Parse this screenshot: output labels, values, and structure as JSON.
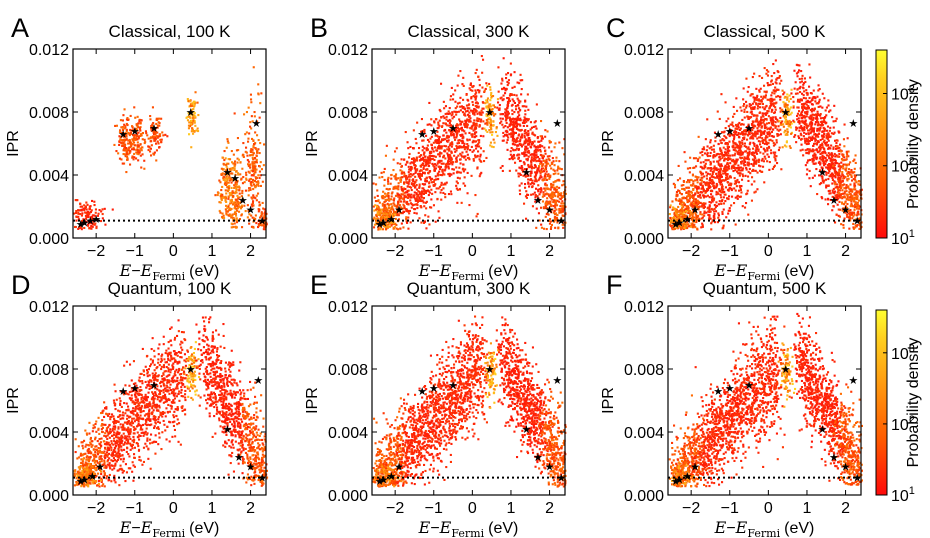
{
  "figure": {
    "colorbar_label": "Probability density",
    "colorbar_ticks": [
      {
        "base": "10",
        "exp": "3"
      },
      {
        "base": "10",
        "exp": "2"
      },
      {
        "base": "10",
        "exp": "1"
      }
    ],
    "colorbar_range": [
      10,
      4000
    ],
    "colorbar_scale": "log",
    "colormap": [
      "#ff0a0a",
      "#ff5a00",
      "#ff9a10",
      "#ffd020",
      "#ffff30"
    ],
    "star_color": "#000000",
    "ipr_floor": 0.0011
  },
  "chart_data": [
    {
      "panel": "A",
      "title": "Classical, 100 K",
      "type": "heatmap",
      "xlabel_main": "E",
      "xlabel_sub": "Fermi",
      "xlabel_unit": "(eV)",
      "ylabel": "IPR",
      "xlim": [
        -2.6,
        2.4
      ],
      "ylim": [
        0,
        0.012
      ],
      "xticks": [
        -2,
        -1,
        0,
        1,
        2
      ],
      "xtick_labels": [
        "−2",
        "−1",
        "0",
        "1",
        "2"
      ],
      "yticks": [
        0,
        0.004,
        0.008,
        0.012
      ],
      "ytick_labels": [
        "0.000",
        "0.004",
        "0.008",
        "0.012"
      ],
      "reference_line_ipr": 0.0011,
      "stars": [
        [
          -2.4,
          0.0009
        ],
        [
          -2.3,
          0.001
        ],
        [
          -2.15,
          0.0011
        ],
        [
          -2.0,
          0.0012
        ],
        [
          -1.3,
          0.0066
        ],
        [
          -1.0,
          0.0068
        ],
        [
          -0.5,
          0.007
        ],
        [
          0.45,
          0.008
        ],
        [
          1.4,
          0.0042
        ],
        [
          1.6,
          0.0038
        ],
        [
          1.8,
          0.0024
        ],
        [
          2.0,
          0.0018
        ],
        [
          2.15,
          0.0073
        ],
        [
          2.3,
          0.0011
        ]
      ]
    },
    {
      "panel": "B",
      "title": "Classical, 300 K",
      "type": "heatmap",
      "xlabel_main": "E",
      "xlabel_sub": "Fermi",
      "xlabel_unit": "(eV)",
      "ylabel": "IPR",
      "xlim": [
        -2.6,
        2.4
      ],
      "ylim": [
        0,
        0.012
      ],
      "xticks": [
        -2,
        -1,
        0,
        1,
        2
      ],
      "xtick_labels": [
        "−2",
        "−1",
        "0",
        "1",
        "2"
      ],
      "yticks": [
        0,
        0.004,
        0.008,
        0.012
      ],
      "ytick_labels": [
        "0.000",
        "0.004",
        "0.008",
        "0.012"
      ],
      "reference_line_ipr": 0.0011,
      "stars": [
        [
          -2.4,
          0.0009
        ],
        [
          -2.3,
          0.001
        ],
        [
          -2.1,
          0.0012
        ],
        [
          -1.9,
          0.0018
        ],
        [
          -1.3,
          0.0066
        ],
        [
          -1.0,
          0.0068
        ],
        [
          -0.5,
          0.007
        ],
        [
          0.45,
          0.008
        ],
        [
          1.4,
          0.0042
        ],
        [
          1.7,
          0.0024
        ],
        [
          2.0,
          0.0018
        ],
        [
          2.2,
          0.0073
        ],
        [
          2.3,
          0.0011
        ]
      ]
    },
    {
      "panel": "C",
      "title": "Classical, 500 K",
      "type": "heatmap",
      "xlabel_main": "E",
      "xlabel_sub": "Fermi",
      "xlabel_unit": "(eV)",
      "ylabel": "IPR",
      "xlim": [
        -2.6,
        2.4
      ],
      "ylim": [
        0,
        0.012
      ],
      "xticks": [
        -2,
        -1,
        0,
        1,
        2
      ],
      "xtick_labels": [
        "−2",
        "−1",
        "0",
        "1",
        "2"
      ],
      "yticks": [
        0,
        0.004,
        0.008,
        0.012
      ],
      "ytick_labels": [
        "0.000",
        "0.004",
        "0.008",
        "0.012"
      ],
      "reference_line_ipr": 0.0011,
      "stars": [
        [
          -2.4,
          0.0009
        ],
        [
          -2.3,
          0.001
        ],
        [
          -2.1,
          0.0012
        ],
        [
          -1.9,
          0.0018
        ],
        [
          -1.3,
          0.0066
        ],
        [
          -1.0,
          0.0068
        ],
        [
          -0.5,
          0.007
        ],
        [
          0.45,
          0.008
        ],
        [
          1.4,
          0.0042
        ],
        [
          1.7,
          0.0024
        ],
        [
          2.0,
          0.0018
        ],
        [
          2.2,
          0.0073
        ],
        [
          2.3,
          0.0011
        ]
      ]
    },
    {
      "panel": "D",
      "title": "Quantum, 100 K",
      "type": "heatmap",
      "xlabel_main": "E",
      "xlabel_sub": "Fermi",
      "xlabel_unit": "(eV)",
      "ylabel": "IPR",
      "xlim": [
        -2.6,
        2.4
      ],
      "ylim": [
        0,
        0.012
      ],
      "xticks": [
        -2,
        -1,
        0,
        1,
        2
      ],
      "xtick_labels": [
        "−2",
        "−1",
        "0",
        "1",
        "2"
      ],
      "yticks": [
        0,
        0.004,
        0.008,
        0.012
      ],
      "ytick_labels": [
        "0.000",
        "0.004",
        "0.008",
        "0.012"
      ],
      "reference_line_ipr": 0.0011,
      "stars": [
        [
          -2.4,
          0.0009
        ],
        [
          -2.3,
          0.001
        ],
        [
          -2.1,
          0.0012
        ],
        [
          -1.9,
          0.0018
        ],
        [
          -1.3,
          0.0066
        ],
        [
          -1.0,
          0.0068
        ],
        [
          -0.5,
          0.007
        ],
        [
          0.45,
          0.008
        ],
        [
          1.4,
          0.0042
        ],
        [
          1.7,
          0.0024
        ],
        [
          2.0,
          0.0018
        ],
        [
          2.2,
          0.0073
        ],
        [
          2.3,
          0.0011
        ]
      ]
    },
    {
      "panel": "E",
      "title": "Quantum, 300 K",
      "type": "heatmap",
      "xlabel_main": "E",
      "xlabel_sub": "Fermi",
      "xlabel_unit": "(eV)",
      "ylabel": "IPR",
      "xlim": [
        -2.6,
        2.4
      ],
      "ylim": [
        0,
        0.012
      ],
      "xticks": [
        -2,
        -1,
        0,
        1,
        2
      ],
      "xtick_labels": [
        "−2",
        "−1",
        "0",
        "1",
        "2"
      ],
      "yticks": [
        0,
        0.004,
        0.008,
        0.012
      ],
      "ytick_labels": [
        "0.000",
        "0.004",
        "0.008",
        "0.012"
      ],
      "reference_line_ipr": 0.0011,
      "stars": [
        [
          -2.4,
          0.0009
        ],
        [
          -2.3,
          0.001
        ],
        [
          -2.1,
          0.0012
        ],
        [
          -1.9,
          0.0018
        ],
        [
          -1.3,
          0.0066
        ],
        [
          -1.0,
          0.0068
        ],
        [
          -0.5,
          0.007
        ],
        [
          0.45,
          0.008
        ],
        [
          1.4,
          0.0042
        ],
        [
          1.7,
          0.0024
        ],
        [
          2.0,
          0.0018
        ],
        [
          2.2,
          0.0073
        ],
        [
          2.3,
          0.0011
        ]
      ]
    },
    {
      "panel": "F",
      "title": "Quantum, 500 K",
      "type": "heatmap",
      "xlabel_main": "E",
      "xlabel_sub": "Fermi",
      "xlabel_unit": "(eV)",
      "ylabel": "IPR",
      "xlim": [
        -2.6,
        2.4
      ],
      "ylim": [
        0,
        0.012
      ],
      "xticks": [
        -2,
        -1,
        0,
        1,
        2
      ],
      "xtick_labels": [
        "−2",
        "−1",
        "0",
        "1",
        "2"
      ],
      "yticks": [
        0,
        0.004,
        0.008,
        0.012
      ],
      "ytick_labels": [
        "0.000",
        "0.004",
        "0.008",
        "0.012"
      ],
      "reference_line_ipr": 0.0011,
      "stars": [
        [
          -2.4,
          0.0009
        ],
        [
          -2.3,
          0.001
        ],
        [
          -2.1,
          0.0012
        ],
        [
          -1.9,
          0.0018
        ],
        [
          -1.3,
          0.0066
        ],
        [
          -1.0,
          0.0068
        ],
        [
          -0.5,
          0.007
        ],
        [
          0.45,
          0.008
        ],
        [
          1.4,
          0.0042
        ],
        [
          1.7,
          0.0024
        ],
        [
          2.0,
          0.0018
        ],
        [
          2.2,
          0.0073
        ],
        [
          2.3,
          0.0011
        ]
      ]
    }
  ]
}
